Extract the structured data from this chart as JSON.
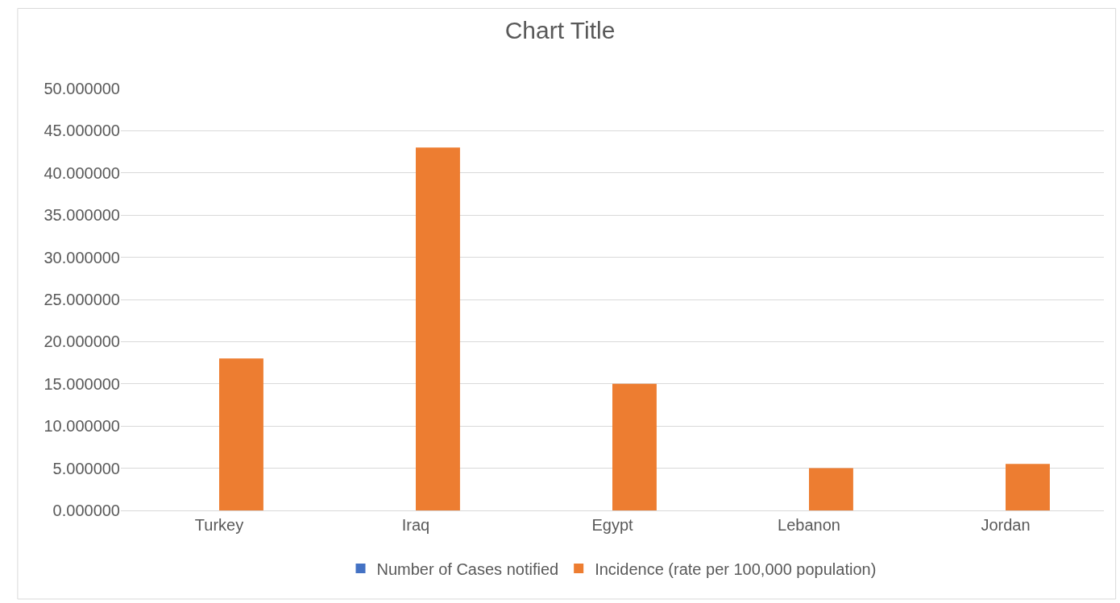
{
  "chart_data": {
    "type": "bar",
    "title": "Chart Title",
    "categories": [
      "Turkey",
      "Iraq",
      "Egypt",
      "Lebanon",
      "Jordan"
    ],
    "series": [
      {
        "name": "Number of Cases notified",
        "color": "#4472c4",
        "values": [
          0,
          0,
          0,
          0,
          0
        ]
      },
      {
        "name": "Incidence (rate per 100,000 population)",
        "color": "#ed7d31",
        "values": [
          18,
          43,
          15,
          5,
          5.5
        ]
      }
    ],
    "ylim": [
      0,
      50
    ],
    "yticks": [
      {
        "value": 0,
        "label": "0.000000"
      },
      {
        "value": 5,
        "label": "5.000000"
      },
      {
        "value": 10,
        "label": "10.000000"
      },
      {
        "value": 15,
        "label": "15.000000"
      },
      {
        "value": 20,
        "label": "20.000000"
      },
      {
        "value": 25,
        "label": "25.000000"
      },
      {
        "value": 30,
        "label": "30.000000"
      },
      {
        "value": 35,
        "label": "35.000000"
      },
      {
        "value": 40,
        "label": "40.000000"
      },
      {
        "value": 45,
        "label": "45.000000"
      },
      {
        "value": 50,
        "label": "50.000000"
      }
    ],
    "grid": "y",
    "legend": "bottom"
  }
}
